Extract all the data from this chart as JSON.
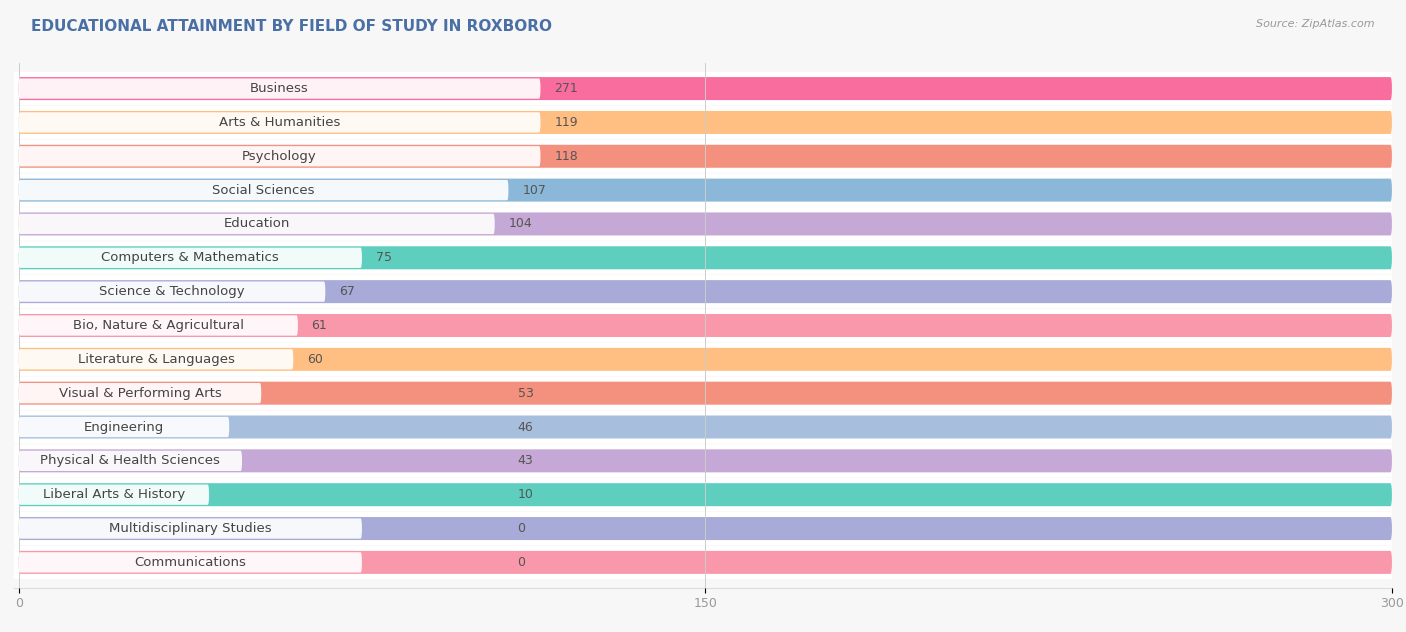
{
  "title": "EDUCATIONAL ATTAINMENT BY FIELD OF STUDY IN ROXBORO",
  "source": "Source: ZipAtlas.com",
  "categories": [
    "Business",
    "Arts & Humanities",
    "Psychology",
    "Social Sciences",
    "Education",
    "Computers & Mathematics",
    "Science & Technology",
    "Bio, Nature & Agricultural",
    "Literature & Languages",
    "Visual & Performing Arts",
    "Engineering",
    "Physical & Health Sciences",
    "Liberal Arts & History",
    "Multidisciplinary Studies",
    "Communications"
  ],
  "values": [
    271,
    119,
    118,
    107,
    104,
    75,
    67,
    61,
    60,
    53,
    46,
    43,
    10,
    0,
    0
  ],
  "colors": [
    "#F96C9E",
    "#FFBF82",
    "#F4907E",
    "#8BB8D8",
    "#C5A8D5",
    "#5ECFBE",
    "#A8AAD8",
    "#F898AA",
    "#FFBF82",
    "#F4907E",
    "#A8BEDD",
    "#C5A8D5",
    "#5ECFBE",
    "#A8AAD8",
    "#F898AA"
  ],
  "xlim": [
    0,
    300
  ],
  "xticks": [
    0,
    150,
    300
  ],
  "background_color": "#f7f7f7",
  "bar_bg_color": "#ffffff",
  "title_fontsize": 11,
  "label_fontsize": 9.5,
  "value_fontsize": 9
}
